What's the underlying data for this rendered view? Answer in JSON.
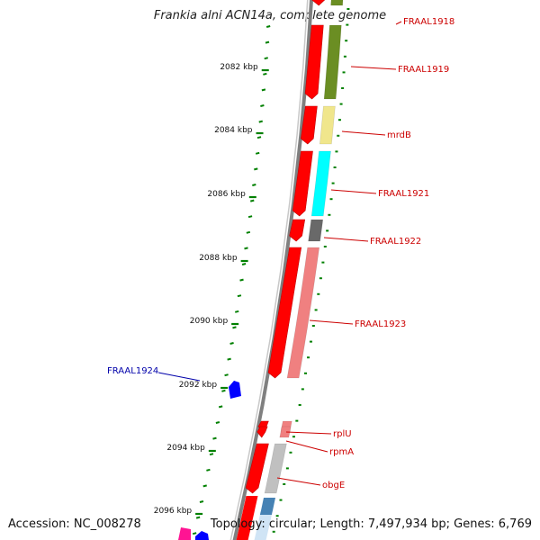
{
  "title": "Frankia alni ACN14a, complete genome",
  "accession": "Accession: NC_008278",
  "topology": "Topology: circular; Length: 7,497,934 bp; Genes: 6,769",
  "colors": {
    "forward_strand": "#ff0000",
    "reverse_strand": "#0000ff",
    "backbone": "#808080",
    "scale_ticks": "#008000",
    "label_forward": "#cc0000",
    "label_reverse": "#0000aa"
  },
  "scale_labels": [
    "2082 kbp",
    "2084 kbp",
    "2086 kbp",
    "2088 kbp",
    "2090 kbp",
    "2092 kbp",
    "2094 kbp",
    "2096 kbp"
  ],
  "genes": [
    {
      "label": "FRAAL1918",
      "strand": "forward",
      "ortholog_color": "#6b8e23"
    },
    {
      "label": "FRAAL1919",
      "strand": "forward",
      "ortholog_color": "#6b8e23"
    },
    {
      "label": "mrdB",
      "strand": "forward",
      "ortholog_color": "#f0e68c"
    },
    {
      "label": "FRAAL1921",
      "strand": "forward",
      "ortholog_color": "#00ffff"
    },
    {
      "label": "FRAAL1922",
      "strand": "forward",
      "ortholog_color": "#696969"
    },
    {
      "label": "FRAAL1923",
      "strand": "forward",
      "ortholog_color": "#f08080"
    },
    {
      "label": "FRAAL1924",
      "strand": "reverse",
      "ortholog_color": "#0000ff"
    },
    {
      "label": "rplU",
      "strand": "forward",
      "ortholog_color": "#f08080"
    },
    {
      "label": "rpmA",
      "strand": "forward",
      "ortholog_color": "#f08080"
    },
    {
      "label": "obgE",
      "strand": "forward",
      "ortholog_color": "#c0c0c0"
    }
  ]
}
